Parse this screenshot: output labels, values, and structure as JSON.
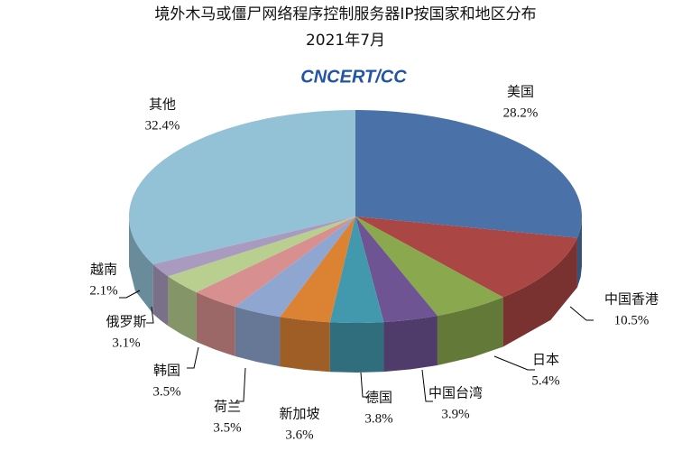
{
  "chart_data": {
    "type": "pie3d",
    "title": "境外木马或僵尸网络程序控制服务器IP按国家和地区分布",
    "subtitle": "2021年7月",
    "logo": "CNCERT/CC",
    "categories": [
      "美国",
      "中国香港",
      "日本",
      "中国台湾",
      "德国",
      "新加坡",
      "荷兰",
      "韩国",
      "俄罗斯",
      "越南",
      "其他"
    ],
    "values": [
      28.2,
      10.5,
      5.4,
      3.9,
      3.8,
      3.6,
      3.5,
      3.5,
      3.1,
      2.1,
      32.4
    ],
    "value_labels": [
      "28.2%",
      "10.5%",
      "5.4%",
      "3.9%",
      "3.8%",
      "3.6%",
      "3.5%",
      "3.5%",
      "3.1%",
      "2.1%",
      "32.4%"
    ],
    "colors": [
      "#4a72a8",
      "#aa4644",
      "#8aa84e",
      "#6f5494",
      "#4298ad",
      "#dc8233",
      "#8ea6d0",
      "#d7908f",
      "#b8cf8f",
      "#a99bbf",
      "#93c1d6"
    ]
  }
}
